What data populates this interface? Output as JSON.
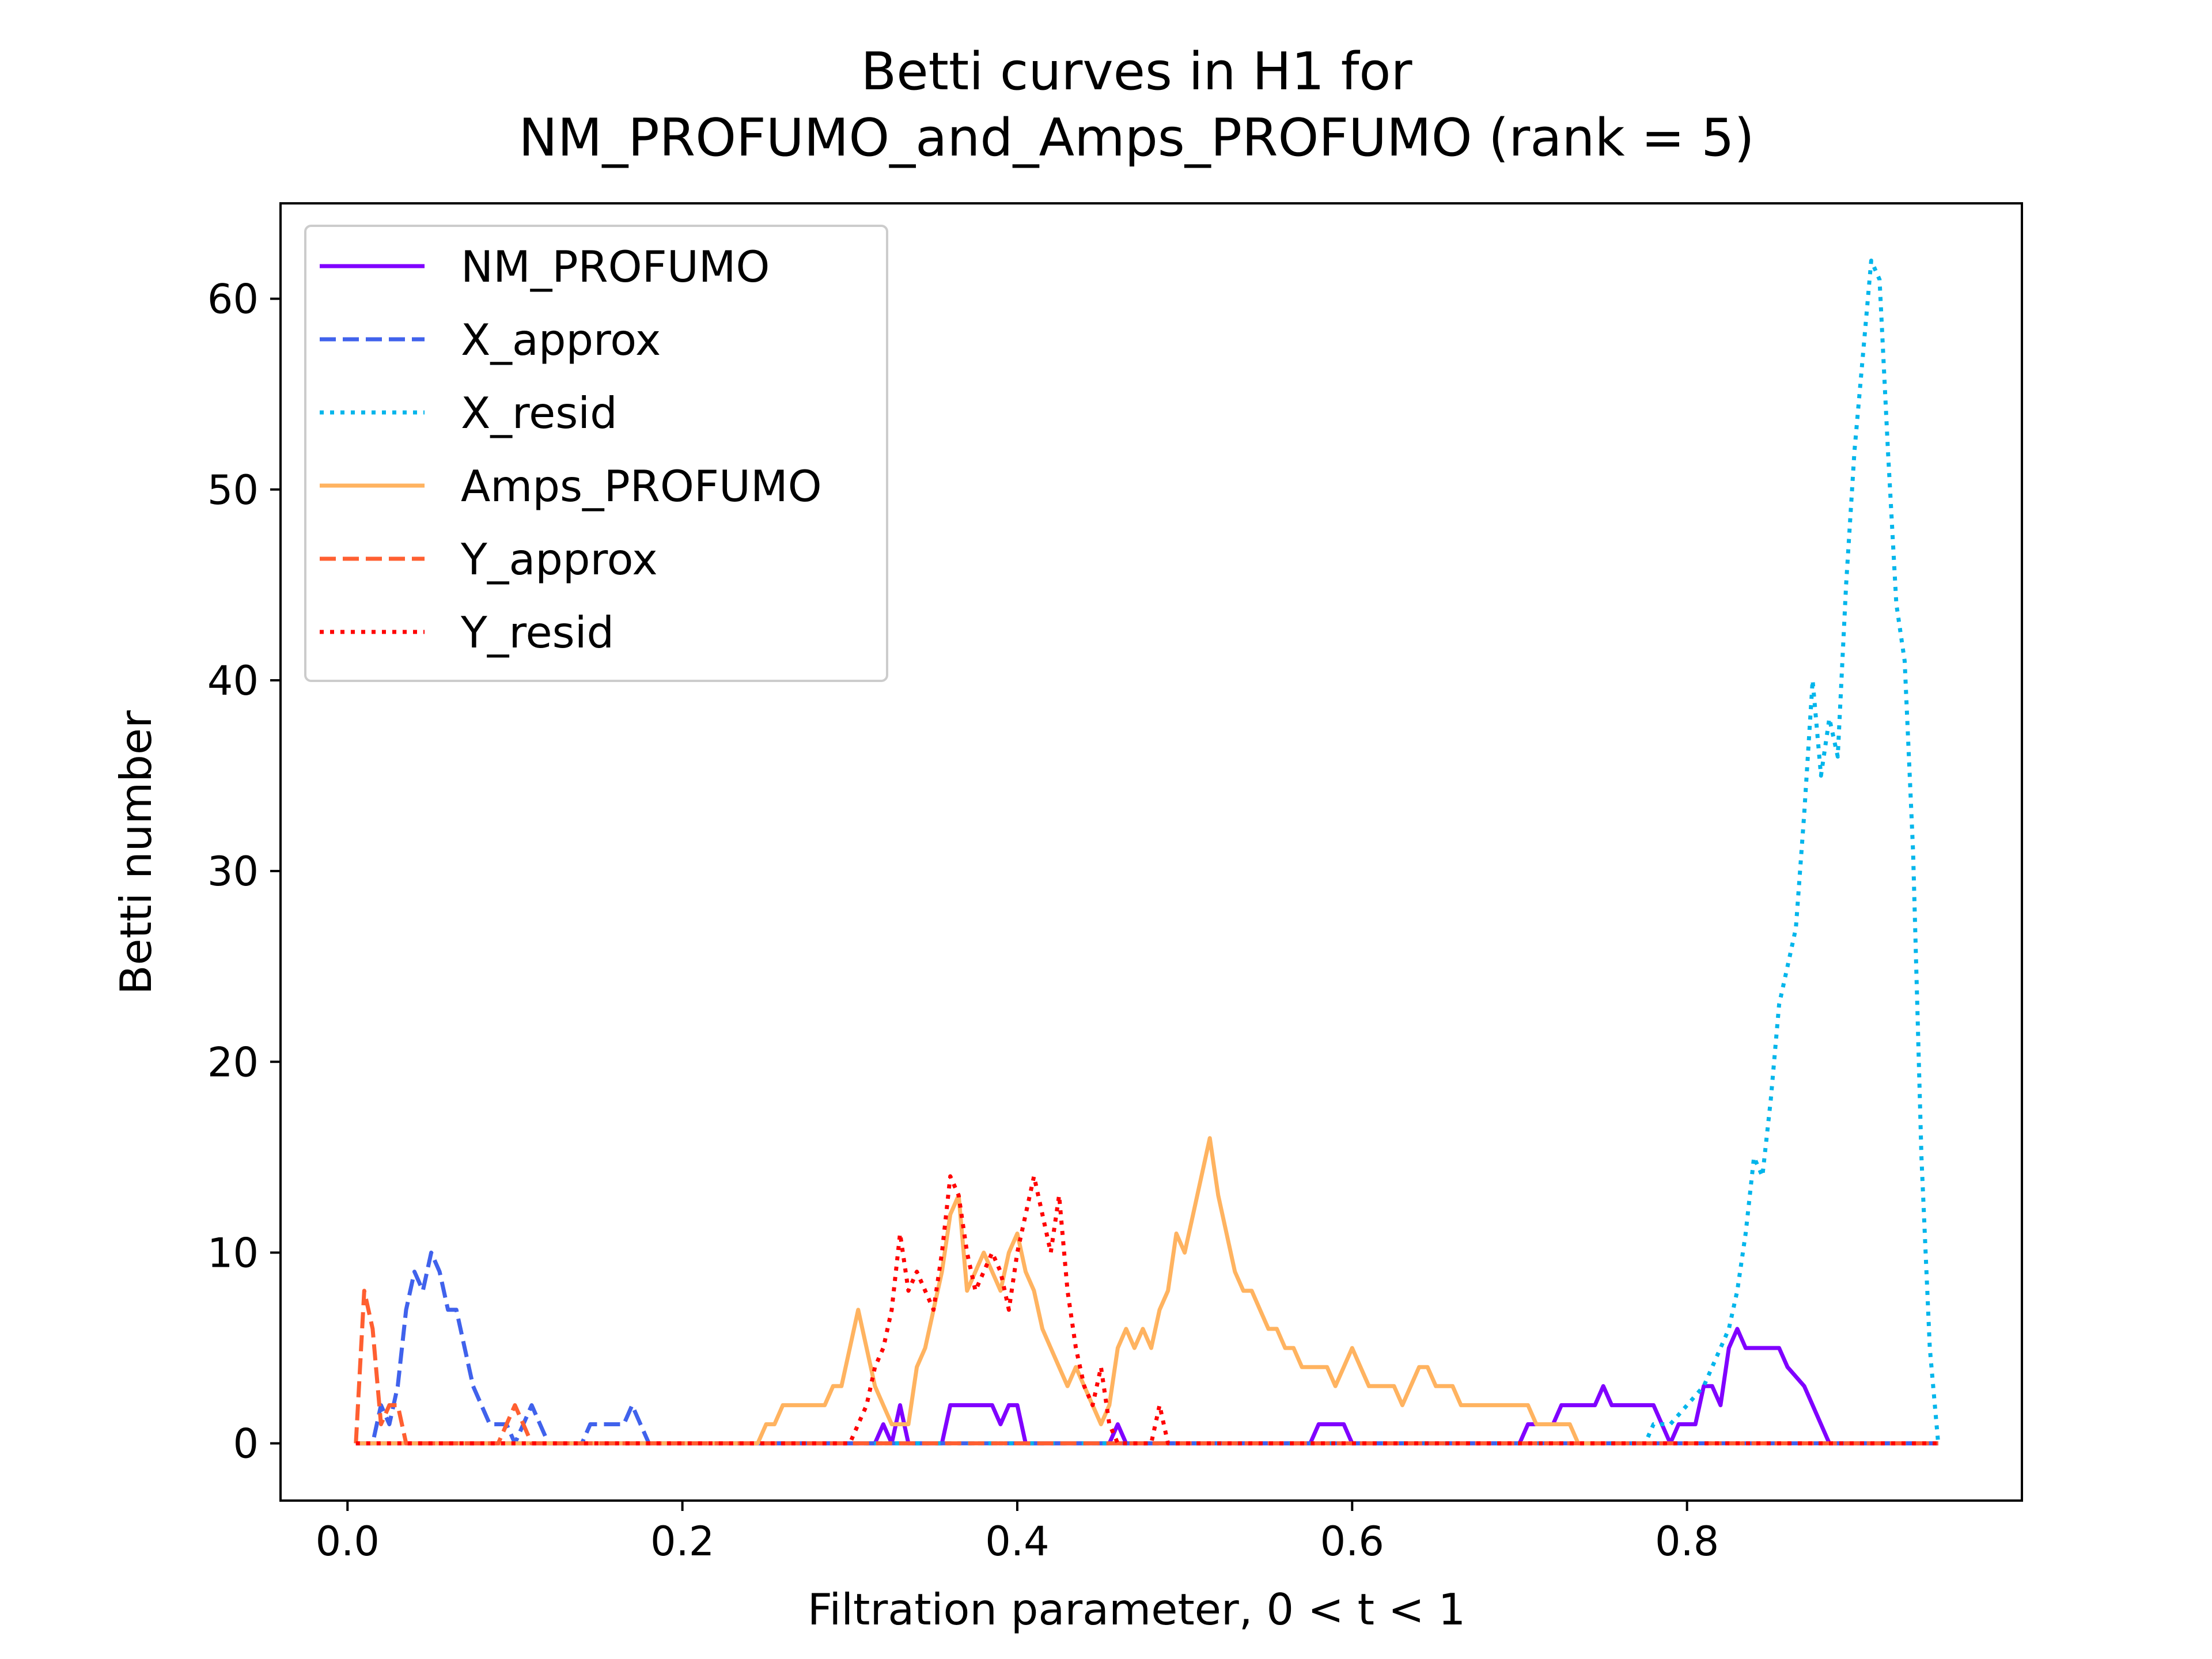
{
  "chart_data": {
    "type": "line",
    "title": [
      "Betti curves in H1 for",
      "NM_PROFUMO_and_Amps_PROFUMO (rank = 5)"
    ],
    "xlabel": "Filtration parameter, 0 < t < 1",
    "ylabel": "Betti number",
    "xlim": [
      -0.04,
      1.0
    ],
    "ylim": [
      -3,
      65
    ],
    "xticks": [
      0.0,
      0.2,
      0.4,
      0.6,
      0.8
    ],
    "xtick_labels": [
      "0.0",
      "0.2",
      "0.4",
      "0.6",
      "0.8"
    ],
    "yticks": [
      0,
      10,
      20,
      30,
      40,
      50,
      60
    ],
    "ytick_labels": [
      "0",
      "10",
      "20",
      "30",
      "40",
      "50",
      "60"
    ],
    "grid": false,
    "legend_position": "top-left",
    "series": [
      {
        "name": "NM_PROFUMO",
        "color": "#8000ff",
        "dash": "solid",
        "x": [
          0.005,
          0.315,
          0.32,
          0.325,
          0.33,
          0.335,
          0.34,
          0.345,
          0.35,
          0.355,
          0.36,
          0.385,
          0.39,
          0.395,
          0.4,
          0.405,
          0.41,
          0.455,
          0.46,
          0.465,
          0.47,
          0.575,
          0.58,
          0.595,
          0.6,
          0.7,
          0.705,
          0.72,
          0.725,
          0.745,
          0.75,
          0.755,
          0.78,
          0.785,
          0.79,
          0.795,
          0.805,
          0.81,
          0.815,
          0.82,
          0.825,
          0.83,
          0.835,
          0.84,
          0.855,
          0.86,
          0.87,
          0.875,
          0.88,
          0.885,
          0.95
        ],
        "y": [
          0,
          0,
          1,
          0,
          2,
          0,
          0,
          0,
          0,
          0,
          2,
          2,
          1,
          2,
          2,
          0,
          0,
          0,
          1,
          0,
          0,
          0,
          1,
          1,
          0,
          0,
          1,
          1,
          2,
          2,
          3,
          2,
          2,
          1,
          0,
          1,
          1,
          3,
          3,
          2,
          5,
          6,
          5,
          5,
          5,
          4,
          3,
          2,
          1,
          0,
          0
        ]
      },
      {
        "name": "X_approx",
        "color": "#4062ec",
        "dash": "dashed",
        "x": [
          0.005,
          0.015,
          0.02,
          0.025,
          0.03,
          0.035,
          0.04,
          0.045,
          0.05,
          0.055,
          0.06,
          0.065,
          0.07,
          0.075,
          0.08,
          0.085,
          0.09,
          0.095,
          0.1,
          0.105,
          0.11,
          0.115,
          0.12,
          0.13,
          0.135,
          0.14,
          0.145,
          0.15,
          0.165,
          0.17,
          0.175,
          0.18,
          0.95
        ],
        "y": [
          0,
          0,
          2,
          1,
          3,
          7,
          9,
          8,
          10,
          9,
          7,
          7,
          5,
          3,
          2,
          1,
          1,
          1,
          0,
          1,
          2,
          1,
          0,
          0,
          0,
          0,
          1,
          1,
          1,
          2,
          1,
          0,
          0
        ]
      },
      {
        "name": "X_resid",
        "color": "#00b5eb",
        "dash": "dotted",
        "x": [
          0.005,
          0.775,
          0.78,
          0.79,
          0.8,
          0.81,
          0.82,
          0.825,
          0.83,
          0.835,
          0.84,
          0.845,
          0.85,
          0.855,
          0.86,
          0.865,
          0.87,
          0.875,
          0.88,
          0.885,
          0.89,
          0.895,
          0.9,
          0.905,
          0.91,
          0.915,
          0.92,
          0.925,
          0.93,
          0.935,
          0.94,
          0.945,
          0.95
        ],
        "y": [
          0,
          0,
          1,
          1,
          2,
          3,
          5,
          6,
          8,
          11,
          15,
          14,
          18,
          23,
          25,
          27,
          33,
          40,
          35,
          38,
          36,
          45,
          52,
          57,
          62,
          61,
          52,
          44,
          41,
          31,
          15,
          5,
          0
        ]
      },
      {
        "name": "Amps_PROFUMO",
        "color": "#ffb360",
        "dash": "solid",
        "x": [
          0.005,
          0.245,
          0.25,
          0.255,
          0.26,
          0.265,
          0.27,
          0.275,
          0.28,
          0.285,
          0.29,
          0.295,
          0.3,
          0.305,
          0.31,
          0.315,
          0.32,
          0.325,
          0.33,
          0.335,
          0.34,
          0.345,
          0.35,
          0.355,
          0.36,
          0.365,
          0.37,
          0.375,
          0.38,
          0.385,
          0.39,
          0.395,
          0.4,
          0.405,
          0.41,
          0.415,
          0.42,
          0.425,
          0.43,
          0.435,
          0.44,
          0.445,
          0.45,
          0.455,
          0.46,
          0.465,
          0.47,
          0.475,
          0.48,
          0.485,
          0.49,
          0.495,
          0.5,
          0.505,
          0.51,
          0.515,
          0.52,
          0.525,
          0.53,
          0.535,
          0.54,
          0.545,
          0.55,
          0.555,
          0.56,
          0.565,
          0.57,
          0.575,
          0.58,
          0.585,
          0.59,
          0.595,
          0.6,
          0.605,
          0.61,
          0.615,
          0.62,
          0.625,
          0.63,
          0.635,
          0.64,
          0.645,
          0.65,
          0.655,
          0.66,
          0.665,
          0.67,
          0.675,
          0.68,
          0.685,
          0.69,
          0.695,
          0.7,
          0.705,
          0.71,
          0.715,
          0.72,
          0.725,
          0.73,
          0.735,
          0.74,
          0.745,
          0.75
        ],
        "y": [
          0,
          0,
          1,
          1,
          2,
          2,
          2,
          2,
          2,
          2,
          3,
          3,
          5,
          7,
          5,
          3,
          2,
          1,
          1,
          1,
          4,
          5,
          7,
          9,
          12,
          13,
          8,
          9,
          10,
          9,
          8,
          10,
          11,
          9,
          8,
          6,
          5,
          4,
          3,
          4,
          3,
          2,
          1,
          2,
          5,
          6,
          5,
          6,
          5,
          7,
          8,
          11,
          10,
          12,
          14,
          16,
          13,
          11,
          9,
          8,
          8,
          7,
          6,
          6,
          5,
          5,
          4,
          4,
          4,
          4,
          3,
          4,
          5,
          4,
          3,
          3,
          3,
          3,
          2,
          3,
          4,
          4,
          3,
          3,
          3,
          2,
          2,
          2,
          2,
          2,
          2,
          2,
          2,
          2,
          1,
          1,
          1,
          1,
          1,
          0,
          0,
          0,
          0
        ]
      },
      {
        "name": "Y_approx",
        "color": "#ff5f31",
        "dash": "dashed",
        "x": [
          0.005,
          0.01,
          0.015,
          0.02,
          0.025,
          0.03,
          0.035,
          0.04,
          0.045,
          0.09,
          0.095,
          0.1,
          0.105,
          0.11,
          0.95
        ],
        "y": [
          0,
          8,
          6,
          1,
          2,
          2,
          0,
          0,
          0,
          0,
          1,
          2,
          1,
          0,
          0
        ]
      },
      {
        "name": "Y_resid",
        "color": "#ff0000",
        "dash": "dotted",
        "x": [
          0.005,
          0.3,
          0.305,
          0.31,
          0.315,
          0.32,
          0.325,
          0.33,
          0.335,
          0.34,
          0.345,
          0.35,
          0.355,
          0.36,
          0.365,
          0.37,
          0.375,
          0.38,
          0.385,
          0.39,
          0.395,
          0.4,
          0.405,
          0.41,
          0.415,
          0.42,
          0.425,
          0.43,
          0.435,
          0.44,
          0.445,
          0.45,
          0.455,
          0.46,
          0.465,
          0.48,
          0.485,
          0.49,
          0.495,
          0.95
        ],
        "y": [
          0,
          0,
          1,
          2,
          4,
          5,
          7,
          11,
          8,
          9,
          8,
          7,
          10,
          14,
          13,
          10,
          8,
          9,
          10,
          9,
          7,
          10,
          12,
          14,
          12,
          10,
          13,
          8,
          5,
          3,
          2,
          4,
          1,
          0,
          0,
          0,
          2,
          0,
          0,
          0
        ]
      }
    ]
  }
}
